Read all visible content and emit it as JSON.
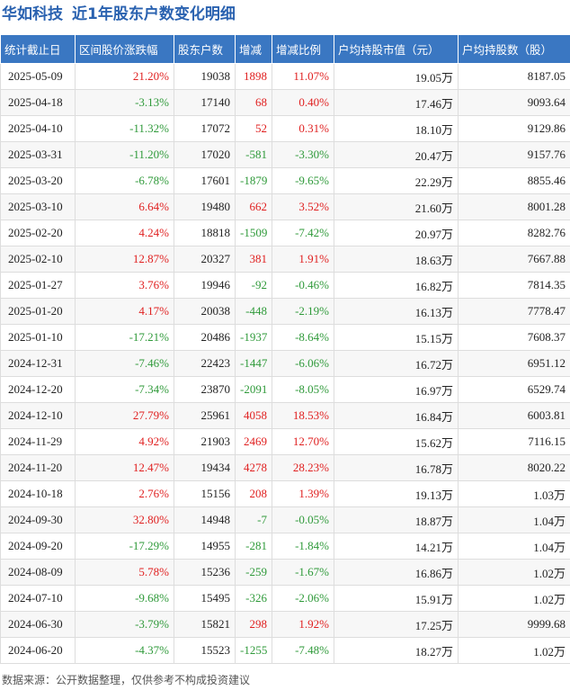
{
  "header": {
    "company": "华如科技",
    "title": "近1年股东户数变化明细"
  },
  "table": {
    "columns": [
      "统计截止日",
      "区间股价涨跌幅",
      "股东户数",
      "增减",
      "增减比例",
      "户均持股市值（元）",
      "户均持股数（股）"
    ],
    "rows": [
      [
        "2025-05-09",
        "21.20%",
        "19038",
        "1898",
        "11.07%",
        "19.05万",
        "8187.05"
      ],
      [
        "2025-04-18",
        "-3.13%",
        "17140",
        "68",
        "0.40%",
        "17.46万",
        "9093.64"
      ],
      [
        "2025-04-10",
        "-11.32%",
        "17072",
        "52",
        "0.31%",
        "18.10万",
        "9129.86"
      ],
      [
        "2025-03-31",
        "-11.20%",
        "17020",
        "-581",
        "-3.30%",
        "20.47万",
        "9157.76"
      ],
      [
        "2025-03-20",
        "-6.78%",
        "17601",
        "-1879",
        "-9.65%",
        "22.29万",
        "8855.46"
      ],
      [
        "2025-03-10",
        "6.64%",
        "19480",
        "662",
        "3.52%",
        "21.60万",
        "8001.28"
      ],
      [
        "2025-02-20",
        "4.24%",
        "18818",
        "-1509",
        "-7.42%",
        "20.97万",
        "8282.76"
      ],
      [
        "2025-02-10",
        "12.87%",
        "20327",
        "381",
        "1.91%",
        "18.63万",
        "7667.88"
      ],
      [
        "2025-01-27",
        "3.76%",
        "19946",
        "-92",
        "-0.46%",
        "16.82万",
        "7814.35"
      ],
      [
        "2025-01-20",
        "4.17%",
        "20038",
        "-448",
        "-2.19%",
        "16.13万",
        "7778.47"
      ],
      [
        "2025-01-10",
        "-17.21%",
        "20486",
        "-1937",
        "-8.64%",
        "15.15万",
        "7608.37"
      ],
      [
        "2024-12-31",
        "-7.46%",
        "22423",
        "-1447",
        "-6.06%",
        "16.72万",
        "6951.12"
      ],
      [
        "2024-12-20",
        "-7.34%",
        "23870",
        "-2091",
        "-8.05%",
        "16.97万",
        "6529.74"
      ],
      [
        "2024-12-10",
        "27.79%",
        "25961",
        "4058",
        "18.53%",
        "16.84万",
        "6003.81"
      ],
      [
        "2024-11-29",
        "4.92%",
        "21903",
        "2469",
        "12.70%",
        "15.62万",
        "7116.15"
      ],
      [
        "2024-11-20",
        "12.47%",
        "19434",
        "4278",
        "28.23%",
        "16.78万",
        "8020.22"
      ],
      [
        "2024-10-18",
        "2.76%",
        "15156",
        "208",
        "1.39%",
        "19.13万",
        "1.03万"
      ],
      [
        "2024-09-30",
        "32.80%",
        "14948",
        "-7",
        "-0.05%",
        "18.87万",
        "1.04万"
      ],
      [
        "2024-09-20",
        "-17.29%",
        "14955",
        "-281",
        "-1.84%",
        "14.21万",
        "1.04万"
      ],
      [
        "2024-08-09",
        "5.78%",
        "15236",
        "-259",
        "-1.67%",
        "16.86万",
        "1.02万"
      ],
      [
        "2024-07-10",
        "-9.68%",
        "15495",
        "-326",
        "-2.06%",
        "15.91万",
        "1.02万"
      ],
      [
        "2024-06-30",
        "-3.79%",
        "15821",
        "298",
        "1.92%",
        "17.25万",
        "9999.68"
      ],
      [
        "2024-06-20",
        "-4.37%",
        "15523",
        "-1255",
        "-7.48%",
        "18.27万",
        "1.02万"
      ]
    ]
  },
  "footer": {
    "source": "数据来源：公开数据整理，仅供参考不构成投资建议"
  }
}
